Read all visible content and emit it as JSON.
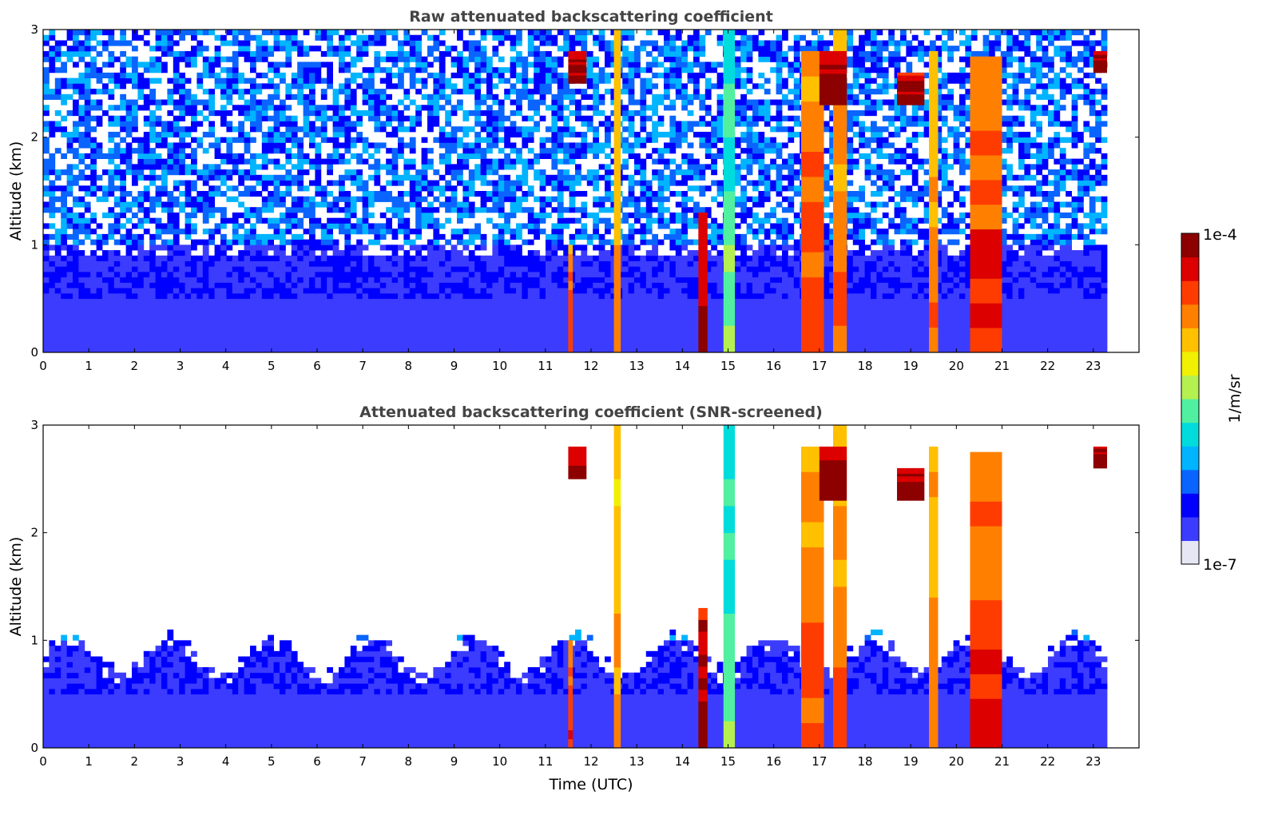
{
  "chart_data": [
    {
      "type": "heatmap",
      "title": "Raw attenuated backscattering coefficient",
      "xlabel": "",
      "ylabel": "Altitude (km)",
      "xlim": [
        0,
        24
      ],
      "ylim": [
        0,
        3
      ],
      "xticks": [
        "0",
        "1",
        "2",
        "3",
        "4",
        "5",
        "6",
        "7",
        "8",
        "9",
        "10",
        "11",
        "12",
        "13",
        "14",
        "15",
        "16",
        "17",
        "18",
        "19",
        "20",
        "21",
        "22",
        "23"
      ],
      "yticks": [
        "0",
        "1",
        "2",
        "3"
      ],
      "data_end_hour": 23.3,
      "screened": false,
      "cloud_layers": [
        {
          "t0": 11.5,
          "t1": 11.6,
          "z0": 0.0,
          "z1": 1.0,
          "level": 0.85
        },
        {
          "t0": 12.5,
          "t1": 12.65,
          "z0": 0.0,
          "z1": 3.0,
          "level": 0.75
        },
        {
          "t0": 14.35,
          "t1": 14.55,
          "z0": 0.0,
          "z1": 1.3,
          "level": 1.0
        },
        {
          "t0": 14.9,
          "t1": 15.15,
          "z0": 0.0,
          "z1": 3.0,
          "level": 0.5
        },
        {
          "t0": 16.6,
          "t1": 17.1,
          "z0": 0.0,
          "z1": 2.8,
          "level": 0.82
        },
        {
          "t0": 17.3,
          "t1": 17.6,
          "z0": 0.0,
          "z1": 3.0,
          "level": 0.8
        },
        {
          "t0": 19.4,
          "t1": 19.6,
          "z0": 0.0,
          "z1": 2.8,
          "level": 0.78
        },
        {
          "t0": 20.3,
          "t1": 21.0,
          "z0": 0.0,
          "z1": 2.75,
          "level": 0.86
        },
        {
          "t0": 11.5,
          "t1": 11.9,
          "z0": 2.5,
          "z1": 2.8,
          "level": 0.98
        },
        {
          "t0": 17.0,
          "t1": 17.6,
          "z0": 2.3,
          "z1": 2.8,
          "level": 1.0
        },
        {
          "t0": 18.7,
          "t1": 19.3,
          "z0": 2.3,
          "z1": 2.6,
          "level": 1.0
        },
        {
          "t0": 23.0,
          "t1": 23.3,
          "z0": 2.6,
          "z1": 2.8,
          "level": 1.0
        }
      ]
    },
    {
      "type": "heatmap",
      "title": "Attenuated backscattering coefficient (SNR-screened)",
      "xlabel": "Time (UTC)",
      "ylabel": "Altitude (km)",
      "xlim": [
        0,
        24
      ],
      "ylim": [
        0,
        3
      ],
      "xticks": [
        "0",
        "1",
        "2",
        "3",
        "4",
        "5",
        "6",
        "7",
        "8",
        "9",
        "10",
        "11",
        "12",
        "13",
        "14",
        "15",
        "16",
        "17",
        "18",
        "19",
        "20",
        "21",
        "22",
        "23"
      ],
      "yticks": [
        "0",
        "1",
        "2",
        "3"
      ],
      "data_end_hour": 23.3,
      "screened": true,
      "cloud_layers": [
        {
          "t0": 11.5,
          "t1": 11.6,
          "z0": 0.0,
          "z1": 1.0,
          "level": 0.85
        },
        {
          "t0": 12.5,
          "t1": 12.65,
          "z0": 0.0,
          "z1": 3.0,
          "level": 0.75
        },
        {
          "t0": 14.35,
          "t1": 14.55,
          "z0": 0.0,
          "z1": 1.3,
          "level": 1.0
        },
        {
          "t0": 14.9,
          "t1": 15.15,
          "z0": 0.0,
          "z1": 3.0,
          "level": 0.5
        },
        {
          "t0": 16.6,
          "t1": 17.1,
          "z0": 0.0,
          "z1": 2.8,
          "level": 0.82
        },
        {
          "t0": 17.3,
          "t1": 17.6,
          "z0": 0.0,
          "z1": 3.0,
          "level": 0.8
        },
        {
          "t0": 19.4,
          "t1": 19.6,
          "z0": 0.0,
          "z1": 2.8,
          "level": 0.78
        },
        {
          "t0": 20.3,
          "t1": 21.0,
          "z0": 0.0,
          "z1": 2.75,
          "level": 0.86
        },
        {
          "t0": 11.5,
          "t1": 11.9,
          "z0": 2.5,
          "z1": 2.8,
          "level": 0.98
        },
        {
          "t0": 17.0,
          "t1": 17.6,
          "z0": 2.3,
          "z1": 2.8,
          "level": 1.0
        },
        {
          "t0": 18.7,
          "t1": 19.3,
          "z0": 2.3,
          "z1": 2.6,
          "level": 1.0
        },
        {
          "t0": 23.0,
          "t1": 23.3,
          "z0": 2.6,
          "z1": 2.8,
          "level": 1.0
        }
      ]
    }
  ],
  "colorbar": {
    "label": "1/m/sr",
    "max_label": "1e-4",
    "min_label": "1e-7",
    "scale": "log",
    "colors": [
      "#e6e6f5",
      "#3c3cff",
      "#0000ff",
      "#0a64ff",
      "#00b4ff",
      "#00dcdc",
      "#50f0a0",
      "#b4f050",
      "#f0f000",
      "#ffc000",
      "#ff8000",
      "#ff3c00",
      "#dc0000",
      "#8c0000"
    ]
  }
}
